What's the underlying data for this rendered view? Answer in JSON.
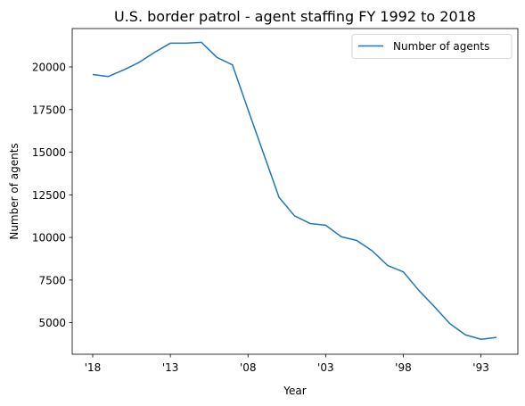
{
  "chart_data": {
    "type": "line",
    "title": "U.S. border patrol - agent staffing FY 1992 to 2018",
    "xlabel": "Year",
    "ylabel": "Number of agents",
    "x": [
      "2018",
      "2017",
      "2016",
      "2015",
      "2014",
      "2013",
      "2012",
      "2011",
      "2010",
      "2009",
      "2008",
      "2007",
      "2006",
      "2005",
      "2004",
      "2003",
      "2002",
      "2001",
      "2000",
      "1999",
      "1998",
      "1997",
      "1996",
      "1995",
      "1994",
      "1993",
      "1992"
    ],
    "x_tick_labels": [
      {
        "x": "2018",
        "label": "'18"
      },
      {
        "x": "2013",
        "label": "'13"
      },
      {
        "x": "2008",
        "label": "'08"
      },
      {
        "x": "2003",
        "label": "'03"
      },
      {
        "x": "1998",
        "label": "'98"
      },
      {
        "x": "1993",
        "label": "'93"
      }
    ],
    "series": [
      {
        "name": "Number of agents",
        "color": "#1f77b4",
        "values": [
          19555,
          19437,
          19828,
          20273,
          20863,
          21391,
          21394,
          21444,
          20558,
          20119,
          17499,
          14923,
          12349,
          11264,
          10819,
          10717,
          10045,
          9821,
          9212,
          8351,
          7982,
          6895,
          5942,
          4945,
          4287,
          4028,
          4139
        ]
      }
    ],
    "ylim": [
      3150,
      22250
    ],
    "y_ticks": [
      5000,
      7500,
      10000,
      12500,
      15000,
      17500,
      20000
    ],
    "grid": false,
    "legend": "top-right"
  }
}
